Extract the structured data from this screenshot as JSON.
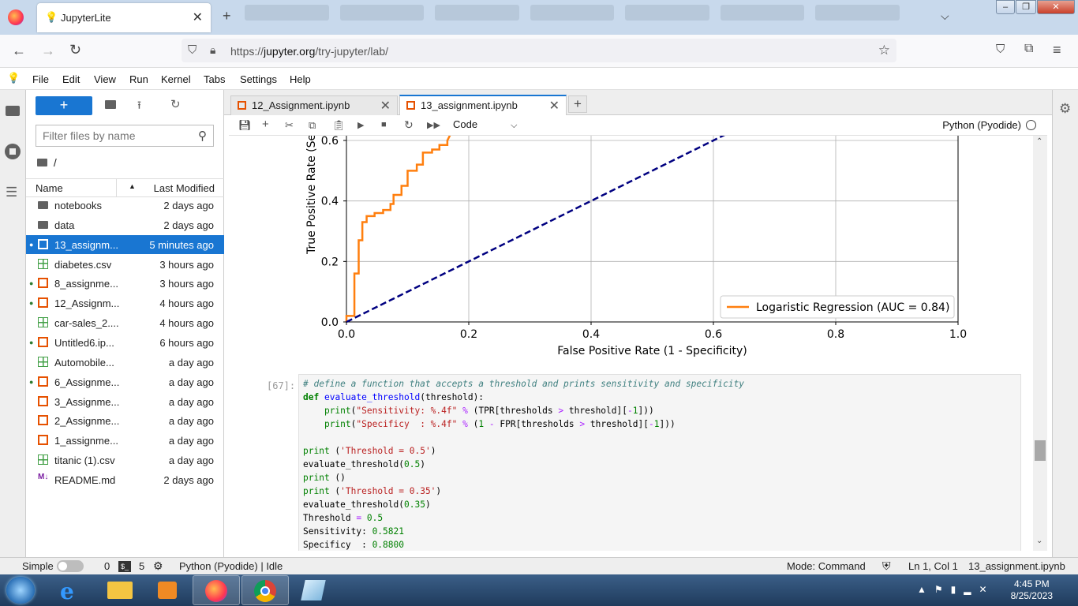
{
  "browser": {
    "tab_title": "JupyterLite",
    "url_domain": "jupyter.org",
    "url_prefix": "https://",
    "url_path": "/try-jupyter/lab/"
  },
  "menu": [
    "File",
    "Edit",
    "View",
    "Run",
    "Kernel",
    "Tabs",
    "Settings",
    "Help"
  ],
  "filebrowser": {
    "filter_placeholder": "Filter files by name",
    "breadcrumb": "/",
    "col_name": "Name",
    "col_modified": "Last Modified",
    "files": [
      {
        "name": "notebooks",
        "modified": "2 days ago",
        "type": "folder",
        "running": false,
        "selected": false
      },
      {
        "name": "data",
        "modified": "2 days ago",
        "type": "folder",
        "running": false,
        "selected": false
      },
      {
        "name": "13_assignm...",
        "modified": "5 minutes ago",
        "type": "notebook",
        "running": true,
        "selected": true
      },
      {
        "name": "diabetes.csv",
        "modified": "3 hours ago",
        "type": "csv",
        "running": false,
        "selected": false
      },
      {
        "name": "8_assignme...",
        "modified": "3 hours ago",
        "type": "notebook",
        "running": true,
        "selected": false
      },
      {
        "name": "12_Assignm...",
        "modified": "4 hours ago",
        "type": "notebook",
        "running": true,
        "selected": false
      },
      {
        "name": "car-sales_2....",
        "modified": "4 hours ago",
        "type": "csv",
        "running": false,
        "selected": false
      },
      {
        "name": "Untitled6.ip...",
        "modified": "6 hours ago",
        "type": "notebook",
        "running": true,
        "selected": false
      },
      {
        "name": "Automobile...",
        "modified": "a day ago",
        "type": "csv",
        "running": false,
        "selected": false
      },
      {
        "name": "6_Assignme...",
        "modified": "a day ago",
        "type": "notebook",
        "running": true,
        "selected": false
      },
      {
        "name": "3_Assignme...",
        "modified": "a day ago",
        "type": "notebook",
        "running": false,
        "selected": false
      },
      {
        "name": "2_Assignme...",
        "modified": "a day ago",
        "type": "notebook",
        "running": false,
        "selected": false
      },
      {
        "name": "1_assignme...",
        "modified": "a day ago",
        "type": "notebook",
        "running": false,
        "selected": false
      },
      {
        "name": "titanic (1).csv",
        "modified": "a day ago",
        "type": "csv",
        "running": false,
        "selected": false
      },
      {
        "name": "README.md",
        "modified": "2 days ago",
        "type": "markdown",
        "running": false,
        "selected": false
      }
    ]
  },
  "notebook_tabs": [
    {
      "label": "12_Assignment.ipynb",
      "active": false
    },
    {
      "label": "13_assignment.ipynb",
      "active": true
    }
  ],
  "toolbar": {
    "cell_type": "Code",
    "kernel": "Python (Pyodide)"
  },
  "chart_data": {
    "type": "line",
    "xlabel": "False Positive Rate (1 - Specificity)",
    "ylabel": "True Positive Rate (Se",
    "xlim": [
      0,
      1
    ],
    "ylim": [
      0,
      0.6
    ],
    "x_ticks": [
      "0.0",
      "0.2",
      "0.4",
      "0.6",
      "0.8",
      "1.0"
    ],
    "y_ticks": [
      "0.0",
      "0.2",
      "0.4",
      "0.6"
    ],
    "grid": true,
    "legend_position": "lower-right",
    "series": [
      {
        "name": "Logaristic Regression (AUC = 0.84)",
        "color": "#ff7f0e",
        "style": "step",
        "x": [
          0.0,
          0.0,
          0.013,
          0.013,
          0.02,
          0.02,
          0.026,
          0.026,
          0.033,
          0.033,
          0.046,
          0.046,
          0.06,
          0.06,
          0.072,
          0.072,
          0.077,
          0.077,
          0.09,
          0.09,
          0.1,
          0.1,
          0.115,
          0.115,
          0.125,
          0.125,
          0.14,
          0.14,
          0.152,
          0.152,
          0.165,
          0.165,
          0.17
        ],
        "y": [
          0.0,
          0.02,
          0.02,
          0.16,
          0.16,
          0.27,
          0.27,
          0.33,
          0.33,
          0.35,
          0.35,
          0.36,
          0.36,
          0.37,
          0.37,
          0.39,
          0.39,
          0.42,
          0.42,
          0.45,
          0.45,
          0.5,
          0.5,
          0.52,
          0.52,
          0.56,
          0.56,
          0.57,
          0.57,
          0.585,
          0.585,
          0.6,
          0.62
        ]
      },
      {
        "name": "",
        "color": "#000080",
        "style": "dashed",
        "x": [
          0.0,
          0.62
        ],
        "y": [
          0.0,
          0.62
        ]
      }
    ]
  },
  "cell": {
    "prompt": "[67]:",
    "comment": "# define a function that accepts a threshold and prints sensitivity and specificity",
    "def_keyword": "def",
    "def_name": "evaluate_threshold",
    "def_args": "(threshold):",
    "print_kw": "print",
    "sens_str": "\"Sensitivity: %.4f\"",
    "spec_str": "\"Specificy  : %.4f\"",
    "pct": "%",
    "sens_expr_a": "(TPR[thresholds ",
    "gt": ">",
    "sens_expr_b": " threshold][",
    "neg_one": "-1",
    "close": "]))",
    "spec_expr_a": "(",
    "one": "1",
    "minus": "-",
    "spec_expr_b": " FPR[thresholds ",
    "str_05": "'Threshold = 0.5'",
    "str_035": "'Threshold = 0.35'",
    "call_05": "evaluate_threshold(",
    "val_05": "0.5",
    "val_035": "0.35",
    "rparen": ")",
    "open_paren": " (",
    "empty_print": " ()",
    "out1_a": "Threshold ",
    "out1_eq": "=",
    "out1_v": " 0.5",
    "out2_a": "Sensitivity: ",
    "out2_v": "0.5821",
    "out3_a": "Specificy  : ",
    "out3_v": "0.8800"
  },
  "statusbar": {
    "mode_label": "Simple",
    "terminals": "0",
    "kernels": "5",
    "kernel_status": "Python (Pyodide) | Idle",
    "mode": "Mode: Command",
    "position": "Ln 1, Col 1",
    "filename": "13_assignment.ipynb"
  },
  "taskbar": {
    "time": "4:45 PM",
    "date": "8/25/2023"
  }
}
